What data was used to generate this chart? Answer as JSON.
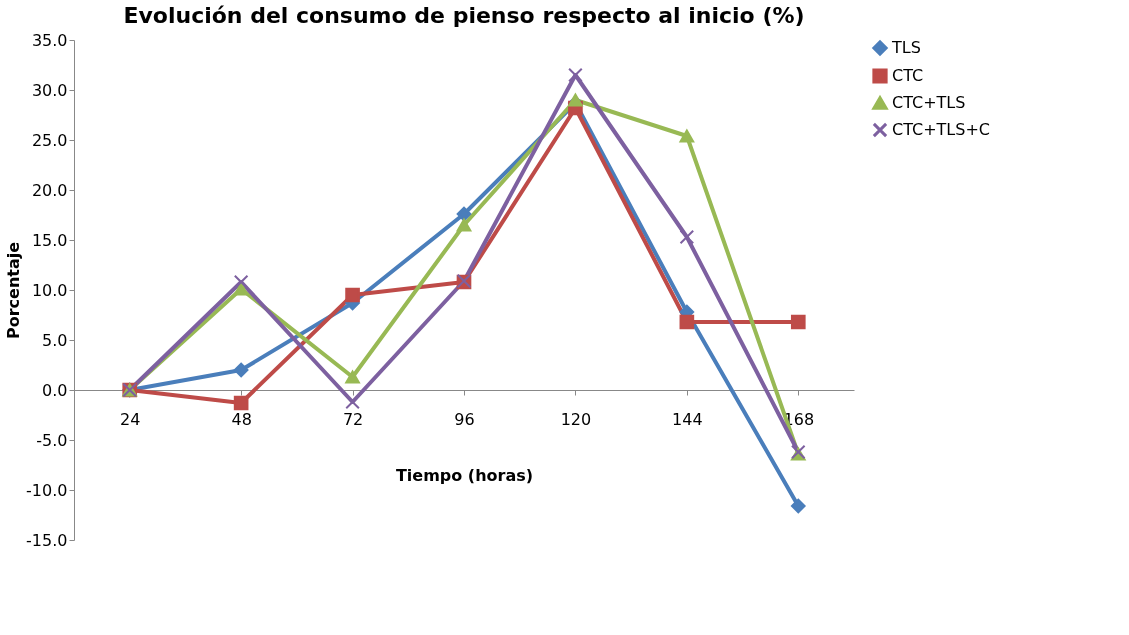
{
  "chart_data": {
    "type": "line",
    "title": "Evolución del consumo de pienso respecto al inicio (%)",
    "xlabel": "Tiempo (horas)",
    "ylabel": "Porcentaje",
    "categories": [
      "24",
      "48",
      "72",
      "96",
      "120",
      "144",
      "168"
    ],
    "series": [
      {
        "name": "TLS",
        "color": "#4a7ebb",
        "marker": "diamond",
        "values": [
          0,
          2.0,
          8.7,
          17.6,
          28.7,
          7.8,
          -11.6
        ]
      },
      {
        "name": "CTC",
        "color": "#be4b48",
        "marker": "square",
        "values": [
          0,
          -1.3,
          9.5,
          10.8,
          28.2,
          6.8,
          6.8
        ]
      },
      {
        "name": "CTC+TLS",
        "color": "#98b954",
        "marker": "triangle",
        "values": [
          0,
          10.1,
          1.3,
          16.5,
          29.0,
          25.4,
          -6.4
        ]
      },
      {
        "name": "CTC+TLS+C",
        "color": "#7d60a0",
        "marker": "cross",
        "values": [
          0,
          10.8,
          -1.2,
          10.9,
          31.5,
          15.3,
          -6.2
        ]
      }
    ],
    "ylim": [
      -15,
      35
    ],
    "yticks": [
      {
        "value": -15,
        "label": "-15.0"
      },
      {
        "value": -10,
        "label": "-10.0"
      },
      {
        "value": -5,
        "label": "-5.0"
      },
      {
        "value": 0,
        "label": "0.0"
      },
      {
        "value": 5,
        "label": "5.0"
      },
      {
        "value": 10,
        "label": "10.0"
      },
      {
        "value": 15,
        "label": "15.0"
      },
      {
        "value": 20,
        "label": "20.0"
      },
      {
        "value": 25,
        "label": "25.0"
      },
      {
        "value": 30,
        "label": "30.0"
      },
      {
        "value": 35,
        "label": "35.0"
      }
    ],
    "grid": false,
    "legend": "right",
    "line_style": "solid"
  }
}
